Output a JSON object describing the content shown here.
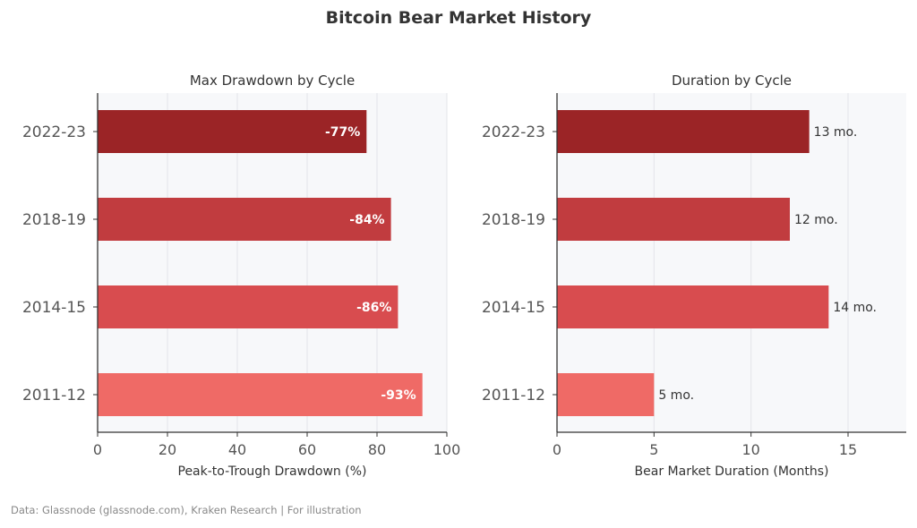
{
  "title": "Bitcoin Bear Market History",
  "footnote": "Data: Glassnode (glassnode.com), Kraken Research | For illustration",
  "colors": {
    "plot_background": "#f7f8fa",
    "grid": "#e3e5ea",
    "axis": "#333333",
    "bars": [
      "#9b2426",
      "#c13c3f",
      "#d84c4f",
      "#ef6a66"
    ]
  },
  "chart_data": [
    {
      "type": "bar",
      "orientation": "horizontal",
      "title": "Max Drawdown by Cycle",
      "xlabel": "Peak-to-Trough Drawdown (%)",
      "ylabel": "",
      "categories": [
        "2022-23",
        "2018-19",
        "2014-15",
        "2011-12"
      ],
      "values": [
        77,
        84,
        86,
        93
      ],
      "data_labels": [
        "-77%",
        "-84%",
        "-86%",
        "-93%"
      ],
      "label_position": "inside-end",
      "xlim": [
        0,
        100
      ],
      "xticks": [
        0,
        20,
        40,
        60,
        80,
        100
      ],
      "grid": true
    },
    {
      "type": "bar",
      "orientation": "horizontal",
      "title": "Duration by Cycle",
      "xlabel": "Bear Market Duration (Months)",
      "ylabel": "",
      "categories": [
        "2022-23",
        "2018-19",
        "2014-15",
        "2011-12"
      ],
      "values": [
        13,
        12,
        14,
        5
      ],
      "data_labels": [
        "13 mo.",
        "12 mo.",
        "14 mo.",
        "5 mo."
      ],
      "label_position": "outside-end",
      "xlim": [
        0,
        18
      ],
      "xticks": [
        0,
        5,
        10,
        15
      ],
      "grid": true
    }
  ]
}
